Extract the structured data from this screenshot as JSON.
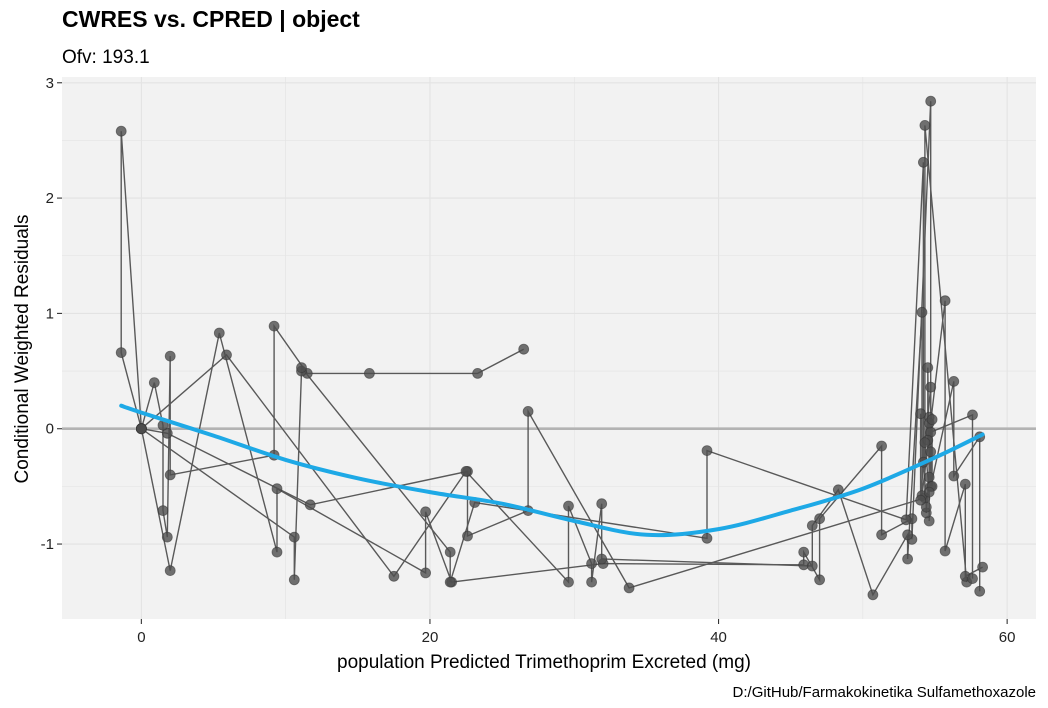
{
  "chart_data": {
    "type": "scatter",
    "title": "CWRES vs. CPRED | object",
    "subtitle": "Ofv: 193.1",
    "xlabel": "population Predicted Trimethoprim Excreted (mg)",
    "ylabel": "Conditional Weighted Residuals",
    "caption": "D:/GitHub/Farmakokinetika Sulfamethoxazole",
    "xlim": [
      -5.5,
      62
    ],
    "ylim": [
      -1.65,
      3.05
    ],
    "x_ticks": [
      0,
      20,
      40,
      60
    ],
    "y_ticks": [
      -1,
      0,
      1,
      2,
      3
    ],
    "grid": true,
    "colors": {
      "panel": "#f2f2f2",
      "grid": "#e3e3e3",
      "points": "#4d4d4d",
      "lines": "#595959",
      "reference": "#b3b3b3",
      "smooth": "#1ea9e6"
    },
    "reference_line_y": 0,
    "series": [
      {
        "points": [
          [
            0,
            0
          ],
          [
            -1.4,
            0.66
          ],
          [
            -1.4,
            2.58
          ],
          [
            0,
            0
          ],
          [
            1.8,
            -0.04
          ],
          [
            11.7,
            -0.66
          ],
          [
            22.6,
            -0.37
          ],
          [
            22.6,
            -0.93
          ],
          [
            26.8,
            -0.71
          ],
          [
            26.8,
            0.15
          ],
          [
            33.8,
            -1.38
          ],
          [
            54.3,
            -0.6
          ],
          [
            54.3,
            2.63
          ],
          [
            57.2,
            -1.33
          ]
        ]
      },
      {
        "points": [
          [
            0,
            0
          ],
          [
            0.9,
            0.4
          ],
          [
            1.5,
            0.03
          ],
          [
            1.5,
            -0.71
          ],
          [
            1.8,
            -0.94
          ],
          [
            2.0,
            0.63
          ],
          [
            2.0,
            -0.4
          ],
          [
            9.2,
            -0.23
          ],
          [
            9.2,
            0.89
          ],
          [
            11.5,
            0.48
          ],
          [
            15.8,
            0.48
          ],
          [
            23.3,
            0.48
          ],
          [
            26.5,
            0.69
          ]
        ]
      },
      {
        "points": [
          [
            0,
            0
          ],
          [
            2.0,
            -1.23
          ],
          [
            5.4,
            0.83
          ],
          [
            9.4,
            -1.07
          ],
          [
            9.4,
            -0.52
          ],
          [
            19.7,
            -1.25
          ],
          [
            19.7,
            -0.72
          ],
          [
            21.5,
            -1.33
          ],
          [
            32.0,
            -1.17
          ],
          [
            45.9,
            -1.18
          ],
          [
            45.9,
            -1.07
          ],
          [
            47.0,
            -1.31
          ],
          [
            47.0,
            -0.78
          ],
          [
            51.3,
            -0.15
          ],
          [
            51.3,
            -0.92
          ],
          [
            53.4,
            -0.78
          ],
          [
            53.4,
            -0.96
          ],
          [
            54.7,
            2.84
          ],
          [
            54.7,
            -0.5
          ],
          [
            56.3,
            0.41
          ],
          [
            56.3,
            -0.41
          ],
          [
            58.1,
            -0.07
          ],
          [
            58.1,
            -1.41
          ]
        ]
      },
      {
        "points": [
          [
            0,
            0
          ],
          [
            5.9,
            0.64
          ],
          [
            17.5,
            -1.28
          ],
          [
            22.5,
            -0.37
          ],
          [
            29.6,
            -1.33
          ],
          [
            29.6,
            -0.67
          ],
          [
            31.2,
            -1.17
          ],
          [
            31.2,
            -1.33
          ],
          [
            31.9,
            -0.65
          ],
          [
            31.9,
            -1.13
          ],
          [
            46.5,
            -1.19
          ],
          [
            46.5,
            -0.84
          ],
          [
            48.3,
            -0.53
          ],
          [
            50.7,
            -1.44
          ],
          [
            53.1,
            -0.92
          ],
          [
            53.1,
            -1.13
          ],
          [
            54.1,
            1.01
          ],
          [
            54.1,
            -0.58
          ],
          [
            55.7,
            1.11
          ],
          [
            55.7,
            -1.06
          ],
          [
            57.1,
            -0.48
          ],
          [
            57.1,
            -1.28
          ],
          [
            58.3,
            -1.2
          ]
        ]
      },
      {
        "points": [
          [
            0,
            0
          ],
          [
            10.6,
            -0.94
          ],
          [
            10.6,
            -1.31
          ],
          [
            11.1,
            0.5
          ],
          [
            11.1,
            0.53
          ],
          [
            21.4,
            -1.07
          ],
          [
            21.4,
            -1.33
          ],
          [
            23.1,
            -0.64
          ],
          [
            39.2,
            -0.95
          ],
          [
            39.2,
            -0.19
          ],
          [
            53.0,
            -0.79
          ],
          [
            54.2,
            2.31
          ],
          [
            54.2,
            -0.29
          ],
          [
            54.7,
            0.36
          ],
          [
            54.7,
            -0.03
          ],
          [
            57.6,
            0.12
          ],
          [
            57.6,
            -1.3
          ]
        ]
      },
      {
        "points": [
          [
            54.5,
            -0.1
          ],
          [
            54.5,
            0.53
          ],
          [
            54.6,
            -0.42
          ],
          [
            54.6,
            0.1
          ],
          [
            54.6,
            -0.8
          ],
          [
            54.6,
            0.05
          ],
          [
            54.8,
            -0.5
          ],
          [
            54.8,
            0.08
          ],
          [
            54.7,
            -0.2
          ],
          [
            54.4,
            -0.73
          ],
          [
            54.4,
            -0.68
          ],
          [
            54.0,
            0.13
          ],
          [
            54.0,
            -0.62
          ],
          [
            54.3,
            -0.12
          ],
          [
            54.6,
            -0.55
          ]
        ]
      }
    ],
    "smooth": [
      [
        -1.4,
        0.2
      ],
      [
        0,
        0.14
      ],
      [
        5,
        -0.06
      ],
      [
        10,
        -0.27
      ],
      [
        15,
        -0.43
      ],
      [
        20,
        -0.55
      ],
      [
        25,
        -0.65
      ],
      [
        30,
        -0.8
      ],
      [
        35,
        -0.92
      ],
      [
        40,
        -0.87
      ],
      [
        45,
        -0.71
      ],
      [
        50,
        -0.52
      ],
      [
        55,
        -0.25
      ],
      [
        58.3,
        -0.05
      ]
    ]
  }
}
